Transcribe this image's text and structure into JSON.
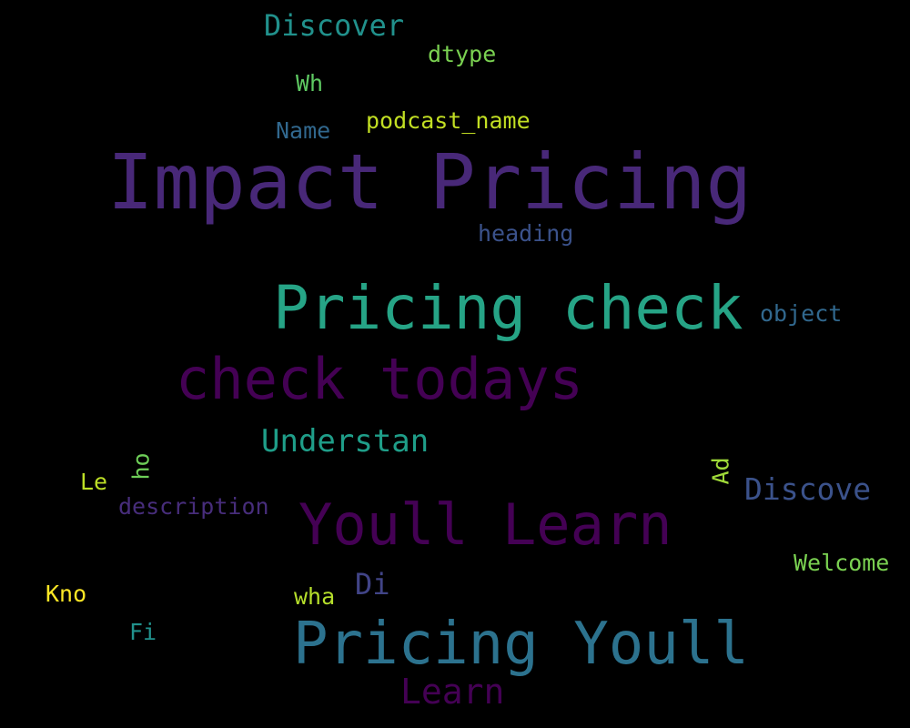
{
  "words": {
    "impact_pricing": {
      "text": "Impact Pricing",
      "color": "#482878"
    },
    "pricing_check": {
      "text": "Pricing check",
      "color": "#26a486"
    },
    "check_todays": {
      "text": "check todays",
      "color": "#440154"
    },
    "youll_learn": {
      "text": "Youll Learn",
      "color": "#440154"
    },
    "pricing_youll": {
      "text": "Pricing Youll",
      "color": "#2c728e"
    },
    "learn": {
      "text": "Learn",
      "color": "#440154"
    },
    "discover": {
      "text": "Discover",
      "color": "#21918c"
    },
    "dtype": {
      "text": "dtype",
      "color": "#7ad151"
    },
    "wh": {
      "text": "Wh",
      "color": "#5ec962"
    },
    "name": {
      "text": "Name",
      "color": "#31688e"
    },
    "podcast_name": {
      "text": "podcast_name",
      "color": "#c2df23"
    },
    "heading": {
      "text": "heading",
      "color": "#3b528b"
    },
    "object": {
      "text": "object",
      "color": "#31688e"
    },
    "understan": {
      "text": "Understan",
      "color": "#1f9e89"
    },
    "discove": {
      "text": "Discove",
      "color": "#3b528b"
    },
    "le": {
      "text": "Le",
      "color": "#bddf26"
    },
    "ho": {
      "text": "ho",
      "color": "#6ece58"
    },
    "description": {
      "text": "description",
      "color": "#472d7b"
    },
    "ad": {
      "text": "Ad",
      "color": "#a0da39"
    },
    "welcome": {
      "text": "Welcome",
      "color": "#7ad151"
    },
    "kno": {
      "text": "Kno",
      "color": "#fde725"
    },
    "wha": {
      "text": "wha",
      "color": "#b5de2b"
    },
    "di": {
      "text": "Di",
      "color": "#414487"
    },
    "fi": {
      "text": "Fi",
      "color": "#21918c"
    }
  }
}
